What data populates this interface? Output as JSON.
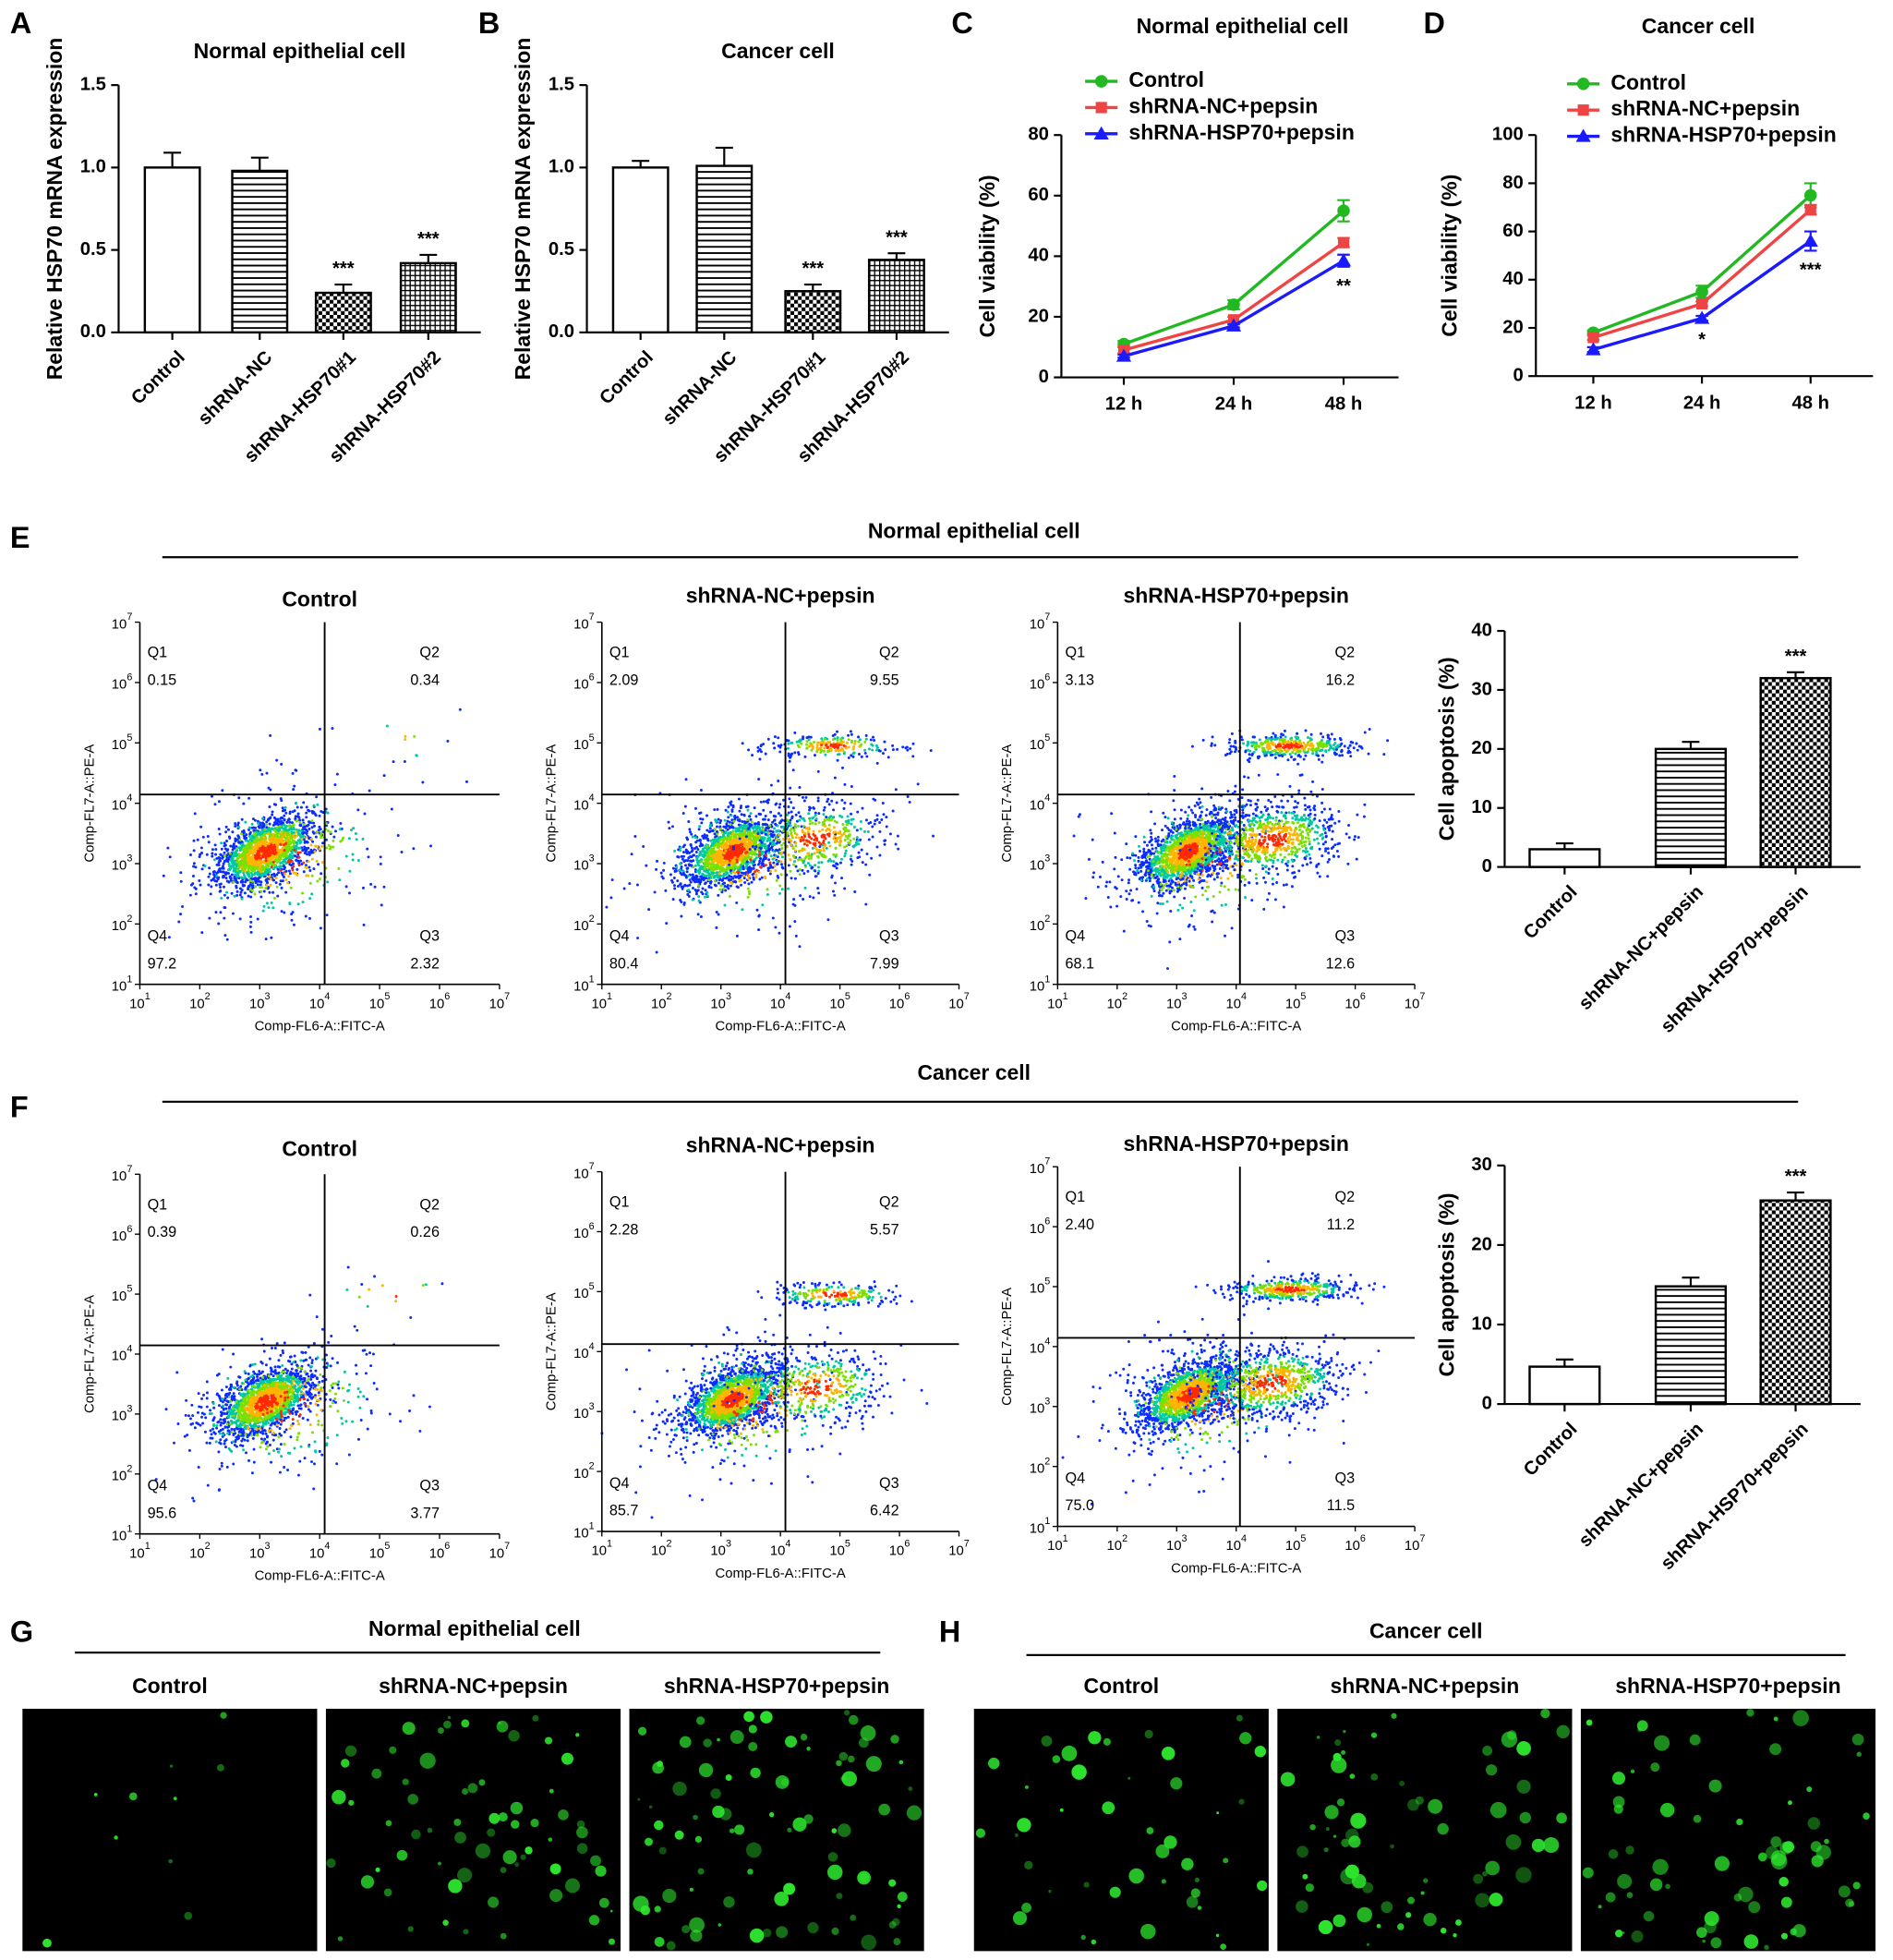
{
  "chart_data": [
    {
      "type": "bar",
      "panel": "A",
      "title": "Normal epithelial cell",
      "y_axis_label": "Relative HSP70 mRNA expression",
      "categories": [
        "Control",
        "shRNA-NC",
        "shRNA-HSP70#1",
        "shRNA-HSP70#2"
      ],
      "values": [
        1.0,
        0.98,
        0.24,
        0.42
      ],
      "errors": [
        0.09,
        0.08,
        0.05,
        0.05
      ],
      "annotations": [
        null,
        null,
        "***",
        "***"
      ],
      "patterns": [
        "none",
        "horizontal",
        "checker",
        "grid"
      ],
      "color": "#000000",
      "ylim": [
        0,
        1.5
      ],
      "yticks": [
        {
          "value": 0,
          "label": "0.0"
        },
        {
          "value": 0.5,
          "label": "0.5"
        },
        {
          "value": 1,
          "label": "1.0"
        },
        {
          "value": 1.5,
          "label": "1.5"
        }
      ]
    },
    {
      "type": "bar",
      "panel": "B",
      "title": "Cancer cell",
      "y_axis_label": "Relative HSP70 mRNA expression",
      "categories": [
        "Control",
        "shRNA-NC",
        "shRNA-HSP70#1",
        "shRNA-HSP70#2"
      ],
      "values": [
        1.0,
        1.01,
        0.25,
        0.44
      ],
      "errors": [
        0.04,
        0.11,
        0.04,
        0.04
      ],
      "annotations": [
        null,
        null,
        "***",
        "***"
      ],
      "patterns": [
        "none",
        "horizontal",
        "checker",
        "grid"
      ],
      "color": "#000000",
      "ylim": [
        0,
        1.5
      ],
      "yticks": [
        {
          "value": 0,
          "label": "0.0"
        },
        {
          "value": 0.5,
          "label": "0.5"
        },
        {
          "value": 1,
          "label": "1.0"
        },
        {
          "value": 1.5,
          "label": "1.5"
        }
      ]
    },
    {
      "type": "line",
      "panel": "C",
      "title": "Normal epithelial cell",
      "y_axis_label": "Cell viability (%)",
      "categories": [
        "12 h",
        "24 h",
        "48 h"
      ],
      "series": [
        {
          "name": "Control",
          "color": "#22b822",
          "marker": "circle",
          "values": [
            11,
            24,
            55
          ],
          "errors": [
            1,
            1.5,
            3.5
          ],
          "annotations": [
            null,
            null,
            null
          ]
        },
        {
          "name": "shRNA-NC+pepsin",
          "color": "#ef4444",
          "marker": "square",
          "values": [
            9,
            19,
            44.5
          ],
          "errors": [
            1,
            1,
            1.5
          ],
          "annotations": [
            null,
            null,
            null
          ]
        },
        {
          "name": "shRNA-HSP70+pepsin",
          "color": "#1a1aff",
          "marker": "triangle",
          "values": [
            7,
            17,
            38.5
          ],
          "errors": [
            0.5,
            0.5,
            2
          ],
          "annotations": [
            null,
            null,
            "**"
          ]
        }
      ],
      "ylim": [
        0,
        80
      ],
      "yticks": [
        0,
        20,
        40,
        60,
        80
      ]
    },
    {
      "type": "line",
      "panel": "D",
      "title": "Cancer cell",
      "y_axis_label": "Cell viability (%)",
      "categories": [
        "12 h",
        "24 h",
        "48 h"
      ],
      "series": [
        {
          "name": "Control",
          "color": "#22b822",
          "marker": "circle",
          "values": [
            18,
            35,
            75
          ],
          "errors": [
            1,
            2.5,
            5
          ],
          "annotations": [
            null,
            null,
            null
          ]
        },
        {
          "name": "shRNA-NC+pepsin",
          "color": "#ef4444",
          "marker": "square",
          "values": [
            16,
            30,
            69
          ],
          "errors": [
            1,
            1,
            2
          ],
          "annotations": [
            null,
            null,
            null
          ]
        },
        {
          "name": "shRNA-HSP70+pepsin",
          "color": "#1a1aff",
          "marker": "triangle",
          "values": [
            11,
            24,
            56
          ],
          "errors": [
            1,
            1,
            4
          ],
          "annotations": [
            null,
            "*",
            "***"
          ]
        }
      ],
      "ylim": [
        0,
        100
      ],
      "yticks": [
        0,
        20,
        40,
        60,
        80,
        100
      ]
    },
    {
      "type": "bar",
      "y_axis_label": "Cell apoptosis (%)",
      "categories": [
        "Control",
        "shRNA-NC+pepsin",
        "shRNA-HSP70+pepsin"
      ],
      "values": [
        3,
        20,
        32
      ],
      "errors": [
        1,
        1.2,
        1
      ],
      "annotations": [
        null,
        null,
        "***"
      ],
      "patterns": [
        "none",
        "horizontal",
        "checker"
      ],
      "color": "#000000",
      "ylim": [
        0,
        40
      ],
      "yticks": [
        0,
        10,
        20,
        30,
        40
      ]
    },
    {
      "type": "bar",
      "y_axis_label": "Cell apoptosis (%)",
      "categories": [
        "Control",
        "shRNA-NC+pepsin",
        "shRNA-HSP70+pepsin"
      ],
      "values": [
        4.7,
        14.8,
        25.6
      ],
      "errors": [
        0.9,
        1.1,
        1
      ],
      "annotations": [
        null,
        null,
        "***"
      ],
      "patterns": [
        "none",
        "horizontal",
        "checker"
      ],
      "color": "#000000",
      "ylim": [
        0,
        30
      ],
      "yticks": [
        0,
        10,
        20,
        30
      ]
    }
  ],
  "flow_sections": [
    {
      "panel": "E",
      "title": "Normal epithelial cell",
      "x_axis_label": "Comp-FL6-A::FITC-A",
      "y_axis_label": "Comp-FL7-A::PE-A",
      "tick_base": "10",
      "tick_exponents": [
        "1",
        "2",
        "3",
        "4",
        "5",
        "6",
        "7"
      ],
      "plots": [
        {
          "title": "Control",
          "quadrants": [
            {
              "name": "Q1",
              "value": "0.15"
            },
            {
              "name": "Q2",
              "value": "0.34"
            },
            {
              "name": "Q3",
              "value": "2.32"
            },
            {
              "name": "Q4",
              "value": "97.2"
            }
          ]
        },
        {
          "title": "shRNA-NC+pepsin",
          "quadrants": [
            {
              "name": "Q1",
              "value": "2.09"
            },
            {
              "name": "Q2",
              "value": "9.55"
            },
            {
              "name": "Q3",
              "value": "7.99"
            },
            {
              "name": "Q4",
              "value": "80.4"
            }
          ]
        },
        {
          "title": "shRNA-HSP70+pepsin",
          "quadrants": [
            {
              "name": "Q1",
              "value": "3.13"
            },
            {
              "name": "Q2",
              "value": "16.2"
            },
            {
              "name": "Q3",
              "value": "12.6"
            },
            {
              "name": "Q4",
              "value": "68.1"
            }
          ]
        }
      ]
    },
    {
      "panel": "F",
      "title": "Cancer cell",
      "x_axis_label": "Comp-FL6-A::FITC-A",
      "y_axis_label": "Comp-FL7-A::PE-A",
      "tick_base": "10",
      "tick_exponents": [
        "1",
        "2",
        "3",
        "4",
        "5",
        "6",
        "7"
      ],
      "plots": [
        {
          "title": "Control",
          "quadrants": [
            {
              "name": "Q1",
              "value": "0.39"
            },
            {
              "name": "Q2",
              "value": "0.26"
            },
            {
              "name": "Q3",
              "value": "3.77"
            },
            {
              "name": "Q4",
              "value": "95.6"
            }
          ]
        },
        {
          "title": "shRNA-NC+pepsin",
          "quadrants": [
            {
              "name": "Q1",
              "value": "2.28"
            },
            {
              "name": "Q2",
              "value": "5.57"
            },
            {
              "name": "Q3",
              "value": "6.42"
            },
            {
              "name": "Q4",
              "value": "85.7"
            }
          ]
        },
        {
          "title": "shRNA-HSP70+pepsin",
          "quadrants": [
            {
              "name": "Q1",
              "value": "2.40"
            },
            {
              "name": "Q2",
              "value": "11.2"
            },
            {
              "name": "Q3",
              "value": "11.5"
            },
            {
              "name": "Q4",
              "value": "75.0"
            }
          ]
        }
      ]
    }
  ],
  "fluorescence": [
    {
      "panel": "G",
      "title": "Normal epithelial cell",
      "labels": [
        "Control",
        "shRNA-NC+pepsin",
        "shRNA-HSP70+pepsin"
      ]
    },
    {
      "panel": "H",
      "title": "Cancer cell",
      "labels": [
        "Control",
        "shRNA-NC+pepsin",
        "shRNA-HSP70+pepsin"
      ]
    }
  ]
}
